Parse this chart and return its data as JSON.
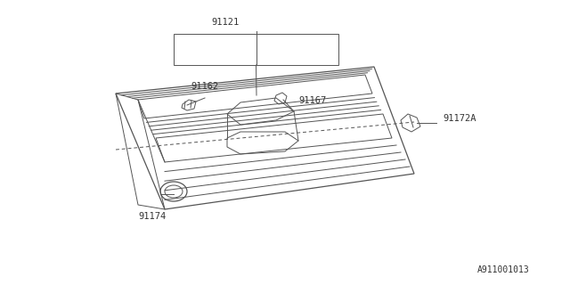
{
  "bg_color": "#ffffff",
  "line_color": "#555555",
  "text_color": "#333333",
  "font_size": 7.5,
  "diagram_id": "A911001013"
}
